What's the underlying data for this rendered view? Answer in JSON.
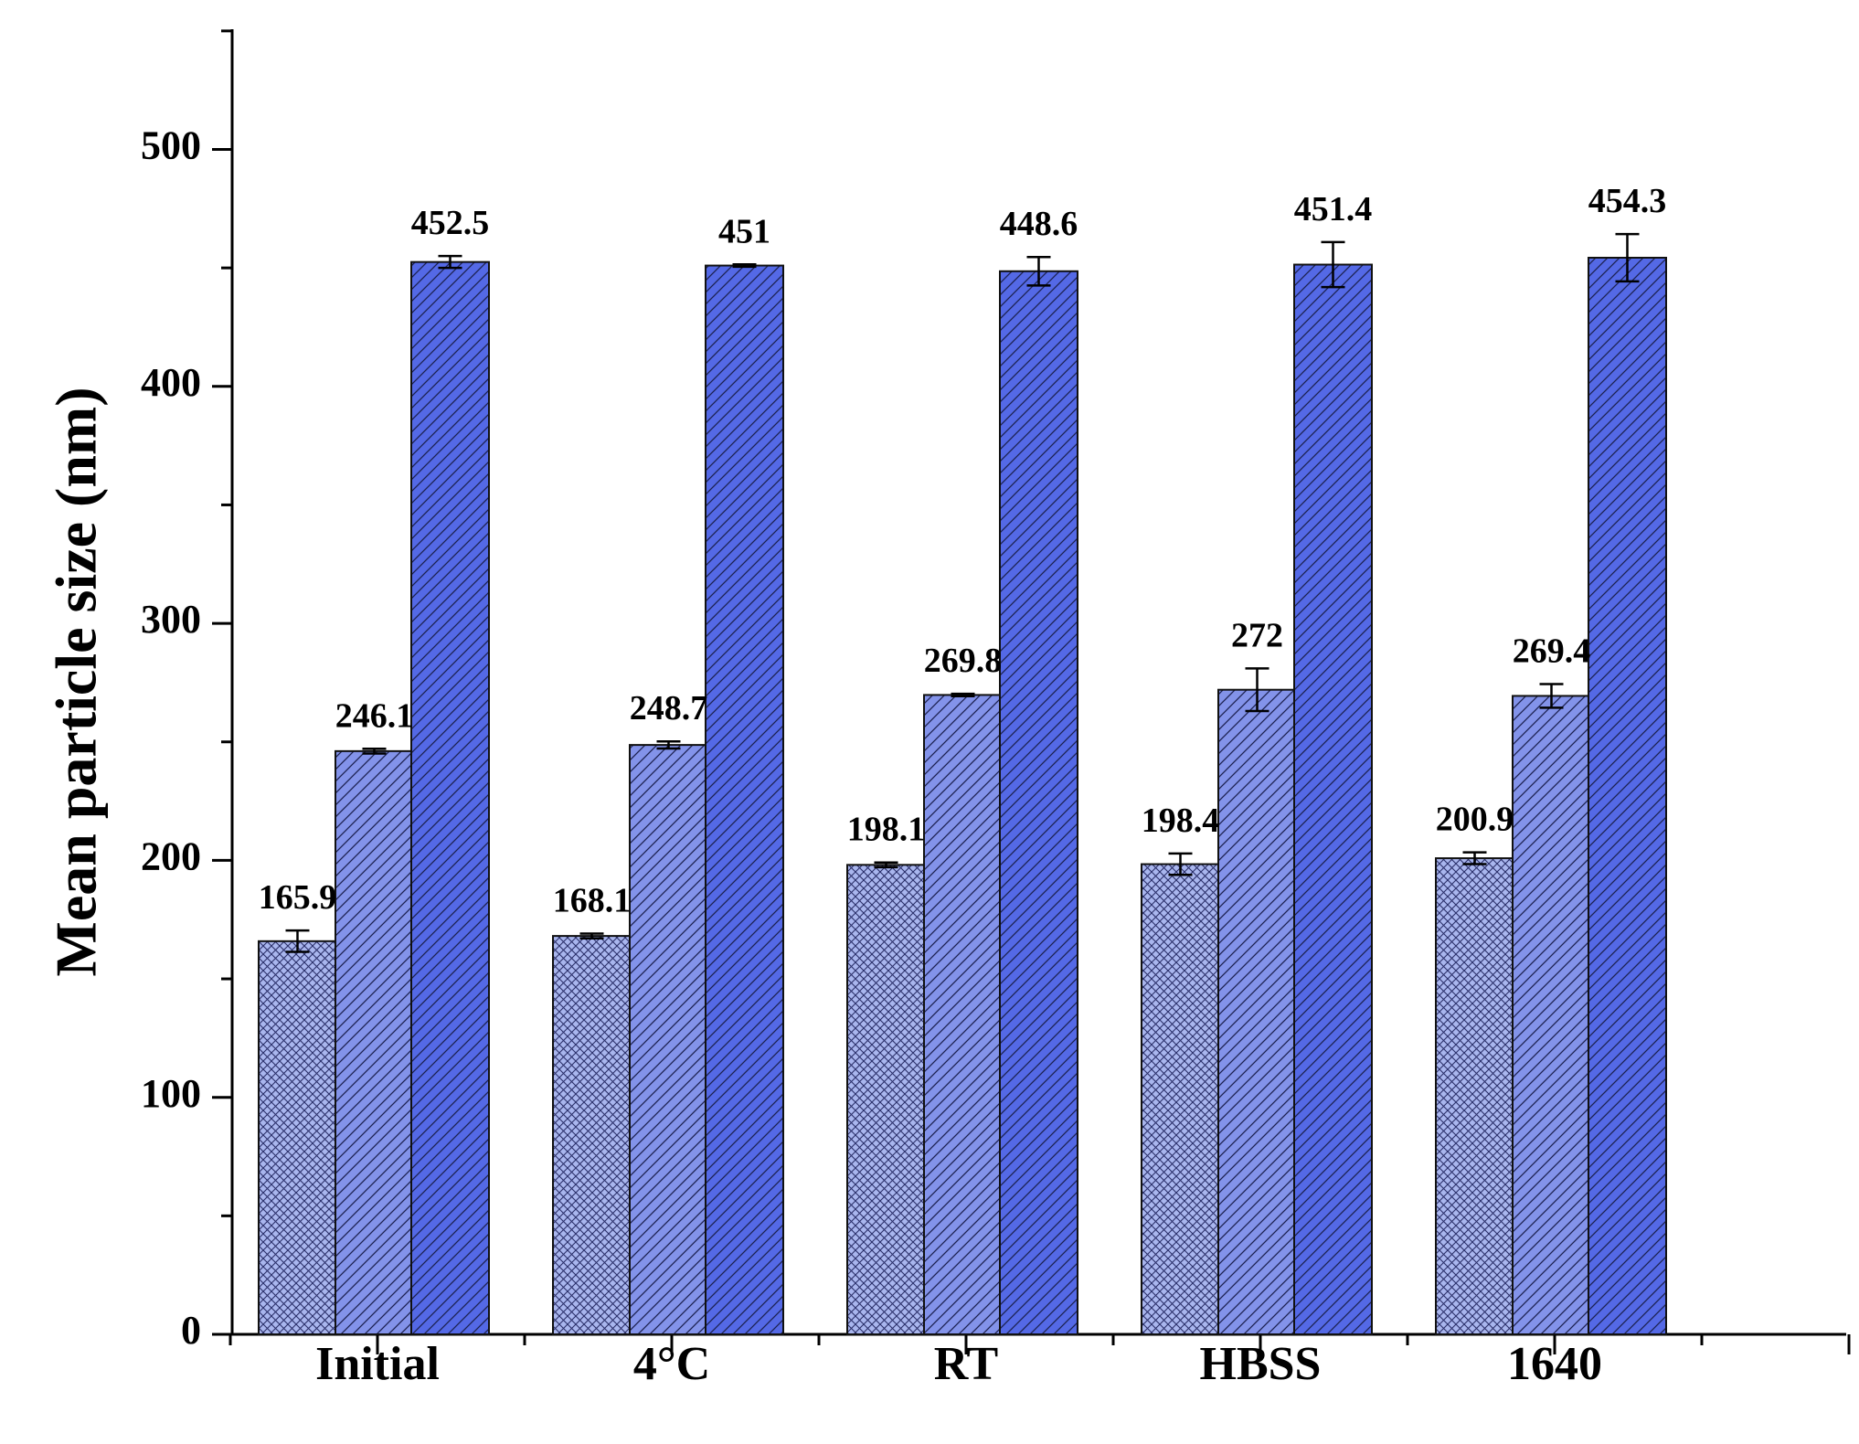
{
  "chart_data": {
    "type": "bar",
    "title": "",
    "xlabel": "",
    "ylabel": "Mean particle size (nm)",
    "ylim": [
      0,
      550
    ],
    "yticks": [
      0,
      100,
      200,
      300,
      400,
      500
    ],
    "categories": [
      "Initial",
      "4°C",
      "RT",
      "HBSS",
      "1640"
    ],
    "series": [
      {
        "name": "series-1",
        "pattern": "crosshatch",
        "color": "#a9b6ee",
        "values": [
          165.9,
          168.1,
          198.1,
          198.4,
          200.9
        ],
        "labels": [
          "165.9",
          "168.1",
          "198.1",
          "198.4",
          "200.9"
        ],
        "errors": [
          4.5,
          1.0,
          1.0,
          4.5,
          2.5
        ]
      },
      {
        "name": "series-2",
        "pattern": "diagonal",
        "color": "#8393ea",
        "values": [
          246.1,
          248.7,
          269.8,
          272,
          269.4
        ],
        "labels": [
          "246.1",
          "248.7",
          "269.8",
          "272",
          "269.4"
        ],
        "errors": [
          1.0,
          1.5,
          0.5,
          9.0,
          5.0
        ]
      },
      {
        "name": "series-3",
        "pattern": "diagonal",
        "color": "#5469e6",
        "values": [
          452.5,
          451,
          448.6,
          451.4,
          454.3
        ],
        "labels": [
          "452.5",
          "451",
          "448.6",
          "451.4",
          "454.3"
        ],
        "errors": [
          2.5,
          0.5,
          6.0,
          9.5,
          10.0
        ]
      }
    ],
    "grid": false,
    "legend": "none"
  }
}
